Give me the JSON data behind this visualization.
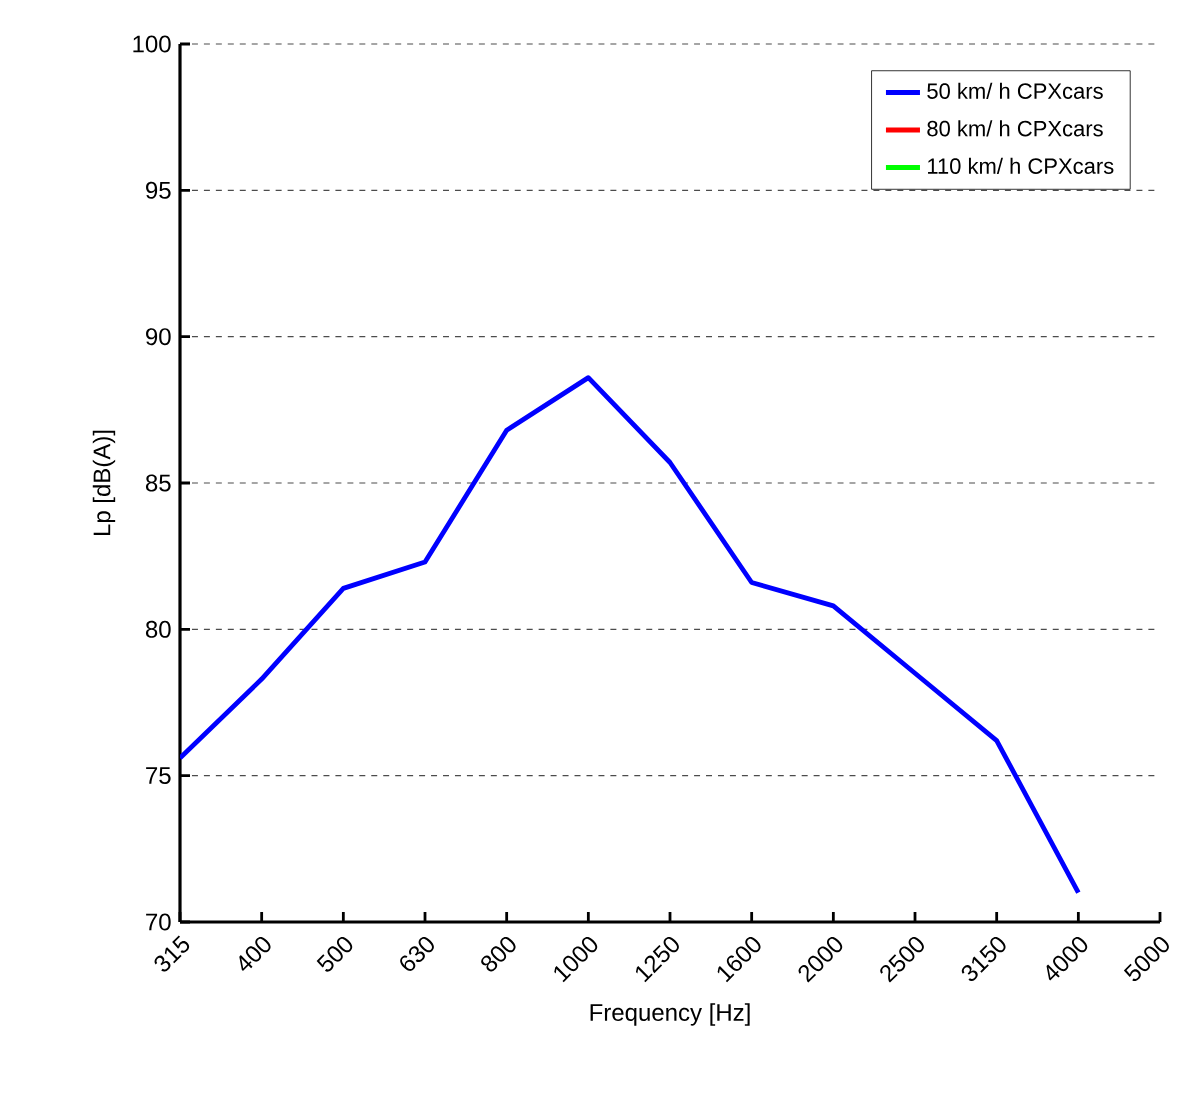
{
  "chart_data": {
    "type": "line",
    "xlabel": "Frequency [Hz]",
    "ylabel": "Lp [dB(A)]",
    "categories": [
      "315",
      "400",
      "500",
      "630",
      "800",
      "1000",
      "1250",
      "1600",
      "2000",
      "2500",
      "3150",
      "4000",
      "5000"
    ],
    "series": [
      {
        "name": "50 km/ h CPXcars",
        "color": "#0000ff",
        "values": [
          75.6,
          78.3,
          81.4,
          82.3,
          86.8,
          88.6,
          85.7,
          81.6,
          80.8,
          78.5,
          76.2,
          71.0,
          null
        ]
      },
      {
        "name": "80 km/ h CPXcars",
        "color": "#ff0000",
        "values": [
          null,
          null,
          null,
          null,
          null,
          null,
          null,
          null,
          null,
          null,
          null,
          null,
          null
        ]
      },
      {
        "name": "110 km/ h CPXcars",
        "color": "#00ff00",
        "values": [
          null,
          null,
          null,
          null,
          null,
          null,
          null,
          null,
          null,
          null,
          null,
          null,
          null
        ]
      }
    ],
    "ylim": [
      70,
      100
    ],
    "yticks": [
      70,
      75,
      80,
      85,
      90,
      95,
      100
    ],
    "grid": "y",
    "legend": "top right",
    "marker": "none",
    "line_style": "solid"
  }
}
